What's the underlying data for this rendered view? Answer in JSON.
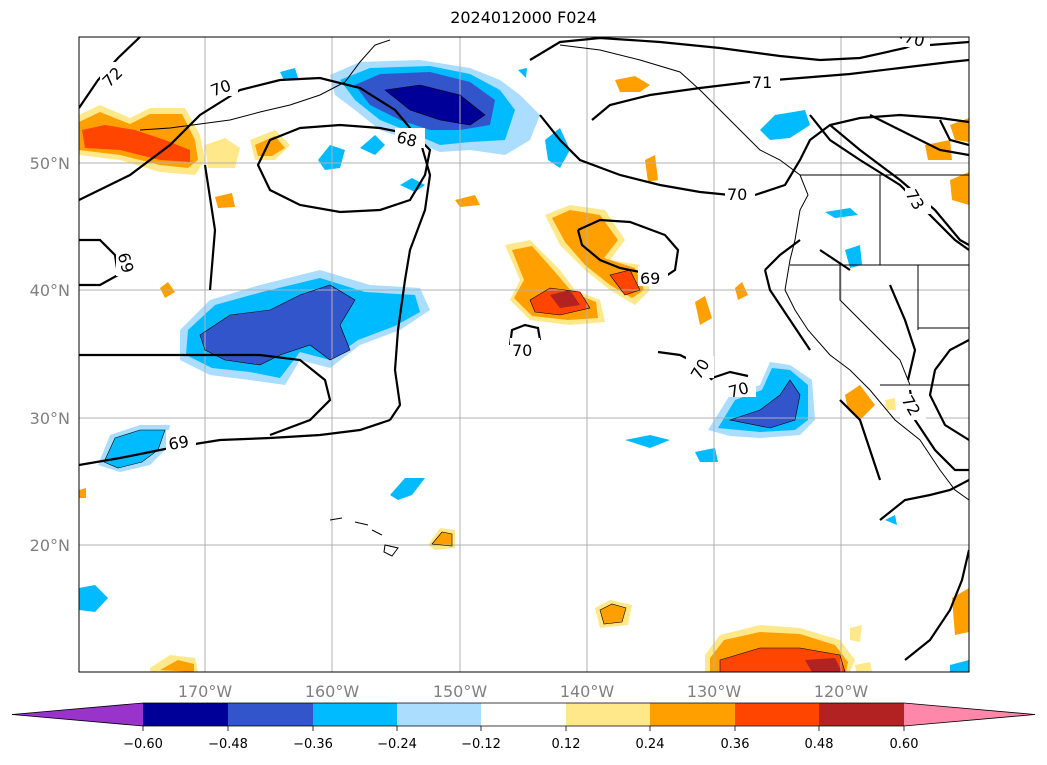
{
  "title": "2024012000 F024",
  "map": {
    "lat_labels": [
      "50°N",
      "40°N",
      "30°N",
      "20°N"
    ],
    "lon_labels": [
      "170°W",
      "160°W",
      "150°W",
      "140°W",
      "130°W",
      "120°W"
    ],
    "contour_labels": [
      "72",
      "70",
      "68",
      "69",
      "71",
      "70",
      "69",
      "70",
      "70",
      "70",
      "73",
      "72",
      "69",
      "70"
    ]
  },
  "colorbar": {
    "ticks": [
      "−0.60",
      "−0.48",
      "−0.36",
      "−0.24",
      "−0.12",
      "0.12",
      "0.24",
      "0.36",
      "0.48",
      "0.60"
    ],
    "colors": [
      "#9933cc",
      "#000099",
      "#3355cc",
      "#00bbff",
      "#aaddff",
      "#ffffff",
      "#ffe88a",
      "#ffa000",
      "#ff4500",
      "#b22222",
      "#ff88aa"
    ]
  }
}
